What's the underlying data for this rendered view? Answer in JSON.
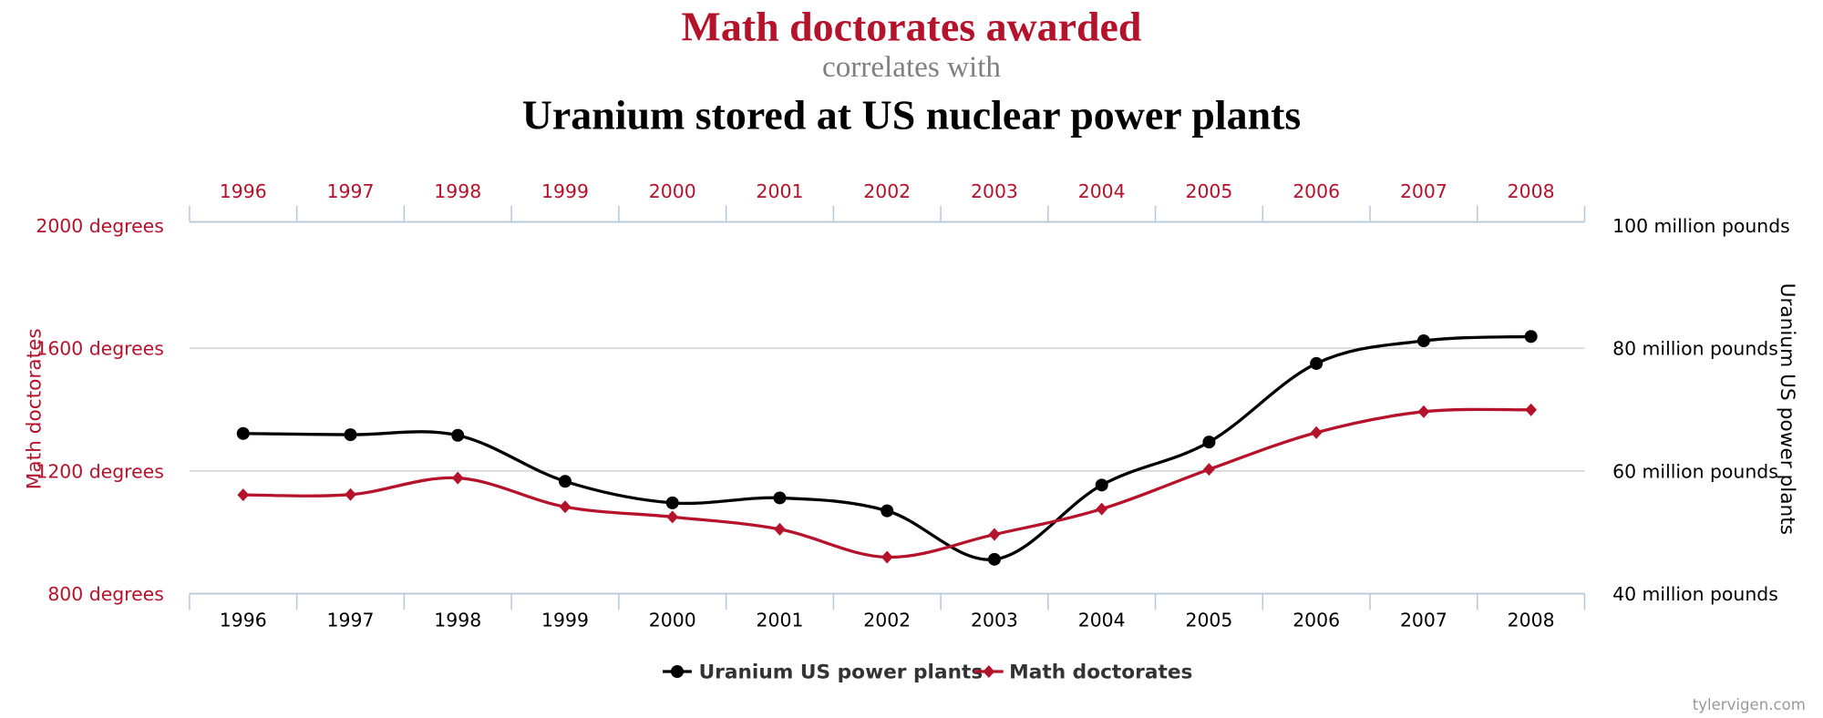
{
  "header": {
    "title": "Math doctorates awarded",
    "subtitle": "correlates with",
    "title2": "Uranium stored at US nuclear power plants"
  },
  "watermark": "tylervigen.com",
  "chart_data": {
    "type": "line",
    "categories": [
      "1996",
      "1997",
      "1998",
      "1999",
      "2000",
      "2001",
      "2002",
      "2003",
      "2004",
      "2005",
      "2006",
      "2007",
      "2008"
    ],
    "series": [
      {
        "name": "Uranium US power plants",
        "axis": "right",
        "color": "#000000",
        "marker": "circle",
        "values": [
          66.1,
          65.9,
          65.8,
          58.3,
          54.8,
          55.6,
          53.5,
          45.6,
          57.7,
          64.7,
          77.5,
          81.2,
          81.9
        ]
      },
      {
        "name": "Math doctorates",
        "axis": "left",
        "color": "#b5122b",
        "marker": "diamond",
        "values": [
          1122,
          1123,
          1177,
          1083,
          1050,
          1010,
          919,
          993,
          1076,
          1205,
          1325,
          1393,
          1399
        ]
      }
    ],
    "left_axis": {
      "label": "Math doctorates",
      "range": [
        800,
        2000
      ],
      "ticks": [
        800,
        1200,
        1600,
        2000
      ],
      "tick_labels": [
        "800 degrees",
        "1200 degrees",
        "1600 degrees",
        "2000 degrees"
      ],
      "color": "#b5122b"
    },
    "right_axis": {
      "label": "Uranium US power plants",
      "range": [
        40,
        100
      ],
      "ticks": [
        40,
        60,
        80,
        100
      ],
      "tick_labels": [
        "40 million pounds",
        "60 million pounds",
        "80 million pounds",
        "100 million pounds"
      ],
      "color": "#000000"
    },
    "grid": true,
    "legend": "bottom-center"
  }
}
